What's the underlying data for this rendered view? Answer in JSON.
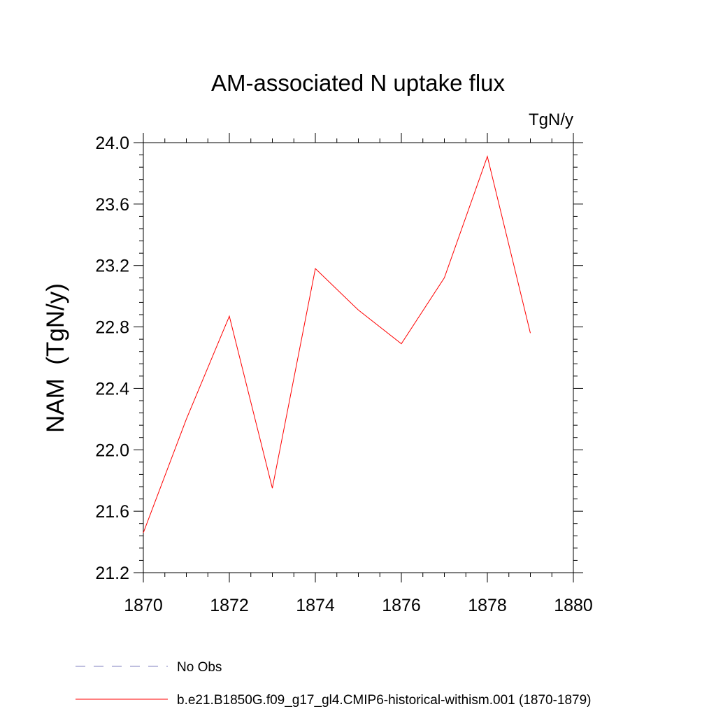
{
  "chart_data": {
    "type": "line",
    "title": "AM-associated N uptake flux",
    "units": "TgN/y",
    "ylabel": "NAM  (TgN/y)",
    "xlabel": "",
    "xlim": [
      1870,
      1880
    ],
    "ylim": [
      21.2,
      24.0
    ],
    "x_ticks": [
      "1870",
      "1872",
      "1874",
      "1876",
      "1878",
      "1880"
    ],
    "y_ticks": [
      "21.2",
      "21.6",
      "22.0",
      "22.4",
      "22.8",
      "23.2",
      "23.6",
      "24.0"
    ],
    "grid": false,
    "legend_position": "bottom-left",
    "series": [
      {
        "name": "b.e21.B1850G.f09_g17_gl4.CMIP6-historical-withism.001 (1870-1879)",
        "color": "#ff0000",
        "style": "solid",
        "x": [
          1870,
          1871,
          1872,
          1873,
          1874,
          1875,
          1876,
          1877,
          1878,
          1879
        ],
        "y": [
          21.46,
          22.2,
          22.87,
          21.75,
          23.18,
          22.91,
          22.69,
          23.12,
          23.91,
          22.76
        ]
      }
    ],
    "legend": [
      {
        "label": "No Obs",
        "color": "#7f7fbf",
        "style": "dashed"
      },
      {
        "label": "b.e21.B1850G.f09_g17_gl4.CMIP6-historical-withism.001 (1870-1879)",
        "color": "#ff0000",
        "style": "solid"
      }
    ]
  }
}
